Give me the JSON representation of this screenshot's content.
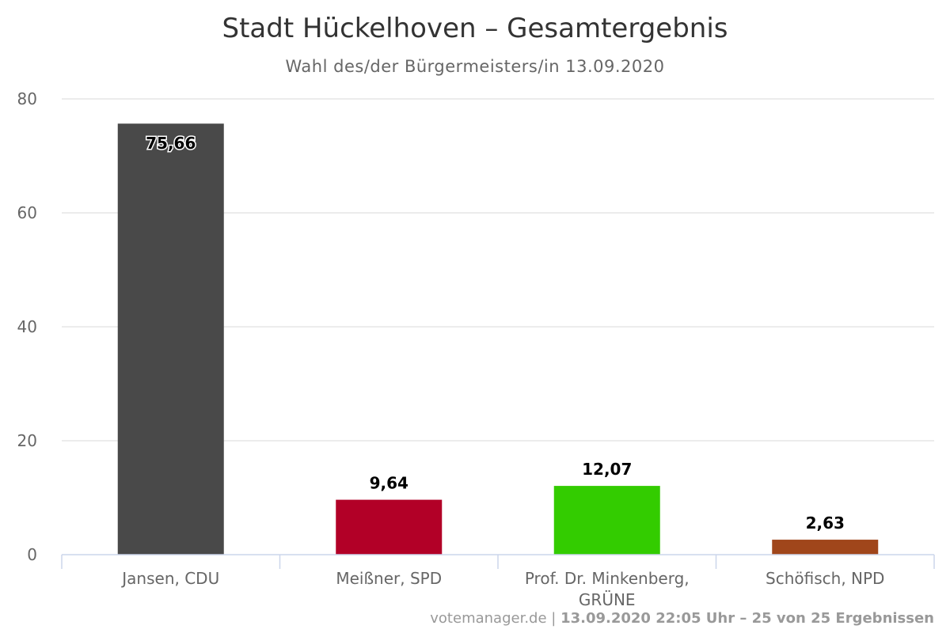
{
  "chart_data": {
    "type": "bar",
    "title": "Stadt Hückelhoven – Gesamtergebnis",
    "subtitle": "Wahl des/der Bürgermeisters/in 13.09.2020",
    "categories": [
      [
        "Jansen, CDU"
      ],
      [
        "Meißner, SPD"
      ],
      [
        "Prof. Dr. Minkenberg,",
        "GRÜNE"
      ],
      [
        "Schöfisch, NPD"
      ]
    ],
    "values": [
      75.66,
      9.64,
      12.07,
      2.63
    ],
    "value_labels": [
      "75,66",
      "9,64",
      "12,07",
      "2,63"
    ],
    "colors": [
      "#494949",
      "#b20027",
      "#33cc00",
      "#a0461b"
    ],
    "ylim": [
      0,
      80
    ],
    "yticks": [
      0,
      20,
      40,
      60,
      80
    ],
    "grid": true,
    "legend": "none"
  },
  "credits": {
    "source": "votemanager.de",
    "separator": " | ",
    "status": "13.09.2020 22:05 Uhr – 25 von 25 Ergebnissen"
  }
}
